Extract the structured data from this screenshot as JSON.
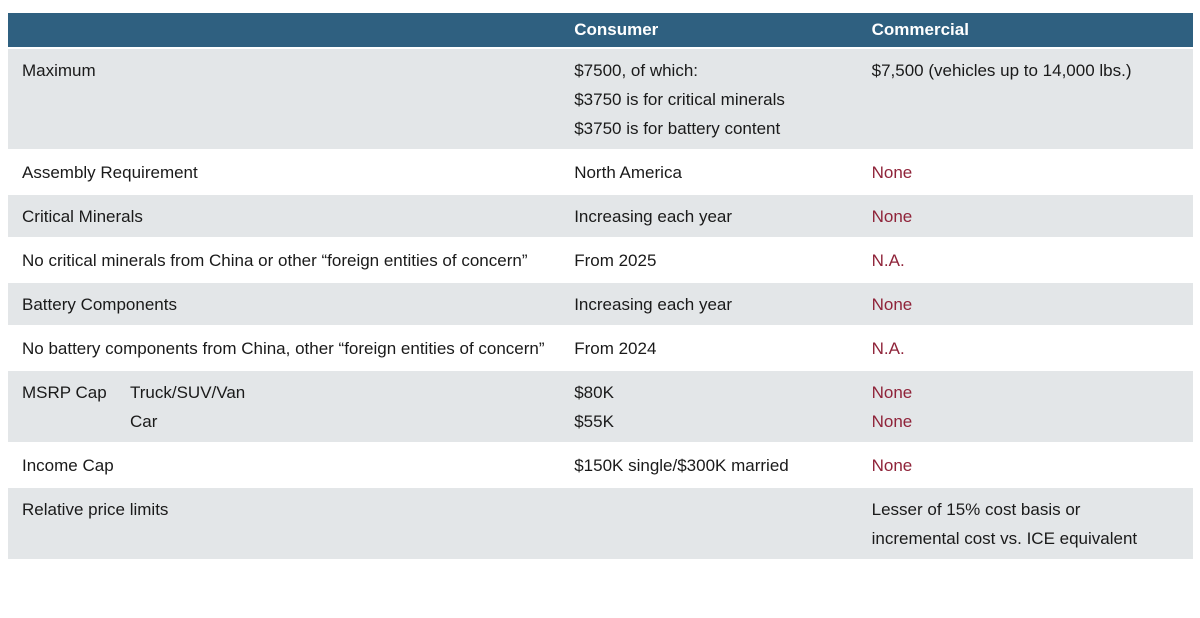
{
  "table": {
    "header": {
      "consumer": "Consumer",
      "commercial": "Commercial"
    },
    "rows": [
      {
        "label": "Maximum",
        "consumer_lines": [
          "$7500, of which:",
          "$3750 is for critical minerals",
          "$3750 is for battery content"
        ],
        "commercial": "$7,500 (vehicles up to 14,000 lbs.)"
      },
      {
        "label": "Assembly Requirement",
        "consumer": "North America",
        "commercial": "None"
      },
      {
        "label": "Critical Minerals",
        "consumer": "Increasing each year",
        "commercial": "None"
      },
      {
        "label": "No critical minerals from China or other “foreign entities of concern”",
        "consumer": "From 2025",
        "commercial": "N.A."
      },
      {
        "label": "Battery Components",
        "consumer": "Increasing each year",
        "commercial": "None"
      },
      {
        "label": "No battery components from China, other “foreign entities of concern”",
        "consumer": "From 2024",
        "commercial": "N.A."
      },
      {
        "label": "MSRP Cap",
        "sublabels": [
          "Truck/SUV/Van",
          "Car"
        ],
        "consumer_lines": [
          "$80K",
          "$55K"
        ],
        "commercial_lines": [
          "None",
          "None"
        ]
      },
      {
        "label": "Income Cap",
        "consumer": "$150K single/$300K married",
        "commercial": "None"
      },
      {
        "label": "Relative price limits",
        "consumer": "",
        "commercial_lines": [
          "Lesser of 15% cost basis or",
          "incremental cost vs. ICE equivalent"
        ]
      }
    ],
    "colors": {
      "header_bg": "#2f6080",
      "row_shade": "#e3e6e8",
      "accent_red": "#8f2339",
      "text": "#1a1a1a"
    }
  }
}
